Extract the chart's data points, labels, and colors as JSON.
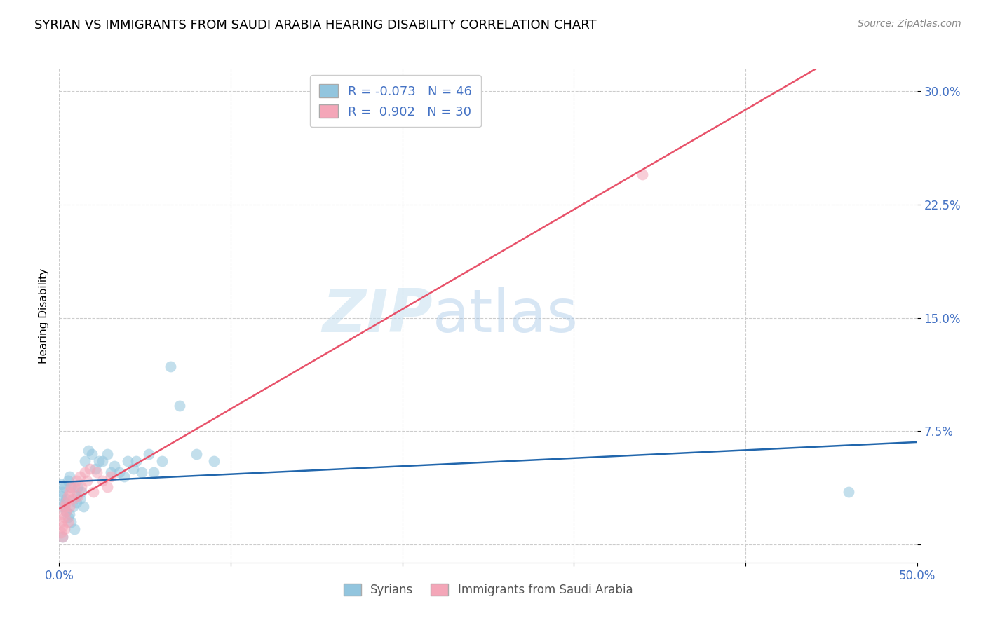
{
  "title": "SYRIAN VS IMMIGRANTS FROM SAUDI ARABIA HEARING DISABILITY CORRELATION CHART",
  "source": "Source: ZipAtlas.com",
  "ylabel": "Hearing Disability",
  "xlim": [
    0.0,
    0.5
  ],
  "ylim": [
    -0.012,
    0.315
  ],
  "xticks": [
    0.0,
    0.1,
    0.2,
    0.3,
    0.4,
    0.5
  ],
  "xtick_labels": [
    "0.0%",
    "",
    "",
    "",
    "",
    "50.0%"
  ],
  "ytick_positions": [
    0.0,
    0.075,
    0.15,
    0.225,
    0.3
  ],
  "ytick_labels": [
    "",
    "7.5%",
    "15.0%",
    "22.5%",
    "30.0%"
  ],
  "syrians_x": [
    0.001,
    0.001,
    0.002,
    0.002,
    0.003,
    0.003,
    0.004,
    0.004,
    0.005,
    0.005,
    0.006,
    0.006,
    0.007,
    0.007,
    0.008,
    0.009,
    0.01,
    0.01,
    0.011,
    0.012,
    0.013,
    0.014,
    0.015,
    0.017,
    0.019,
    0.021,
    0.023,
    0.025,
    0.028,
    0.03,
    0.032,
    0.035,
    0.038,
    0.04,
    0.043,
    0.045,
    0.048,
    0.052,
    0.055,
    0.06,
    0.065,
    0.07,
    0.08,
    0.09,
    0.46,
    0.002
  ],
  "syrians_y": [
    0.04,
    0.032,
    0.035,
    0.025,
    0.038,
    0.028,
    0.03,
    0.022,
    0.042,
    0.018,
    0.045,
    0.02,
    0.038,
    0.015,
    0.025,
    0.01,
    0.032,
    0.028,
    0.038,
    0.03,
    0.035,
    0.025,
    0.055,
    0.062,
    0.06,
    0.05,
    0.055,
    0.055,
    0.06,
    0.048,
    0.052,
    0.048,
    0.045,
    0.055,
    0.05,
    0.055,
    0.048,
    0.06,
    0.048,
    0.055,
    0.118,
    0.092,
    0.06,
    0.055,
    0.035,
    0.005
  ],
  "saudi_x": [
    0.001,
    0.001,
    0.002,
    0.002,
    0.002,
    0.003,
    0.003,
    0.003,
    0.004,
    0.004,
    0.005,
    0.005,
    0.006,
    0.006,
    0.007,
    0.008,
    0.009,
    0.01,
    0.011,
    0.012,
    0.013,
    0.015,
    0.016,
    0.018,
    0.02,
    0.022,
    0.025,
    0.028,
    0.03,
    0.34
  ],
  "saudi_y": [
    0.015,
    0.008,
    0.02,
    0.012,
    0.005,
    0.018,
    0.025,
    0.01,
    0.028,
    0.022,
    0.032,
    0.015,
    0.035,
    0.025,
    0.038,
    0.03,
    0.038,
    0.042,
    0.032,
    0.045,
    0.038,
    0.048,
    0.042,
    0.05,
    0.035,
    0.048,
    0.042,
    0.038,
    0.045,
    0.245
  ],
  "syrians_color": "#92c5de",
  "saudi_color": "#f4a6b8",
  "syrians_line_color": "#2166ac",
  "saudi_line_color": "#e8526a",
  "R_syrians": -0.073,
  "N_syrians": 46,
  "R_saudi": 0.902,
  "N_saudi": 30,
  "legend_label_syrians": "Syrians",
  "legend_label_saudi": "Immigrants from Saudi Arabia",
  "watermark_zip": "ZIP",
  "watermark_atlas": "atlas",
  "title_fontsize": 13,
  "axis_label_fontsize": 11,
  "tick_fontsize": 12,
  "source_fontsize": 10,
  "tick_color": "#4472c4"
}
